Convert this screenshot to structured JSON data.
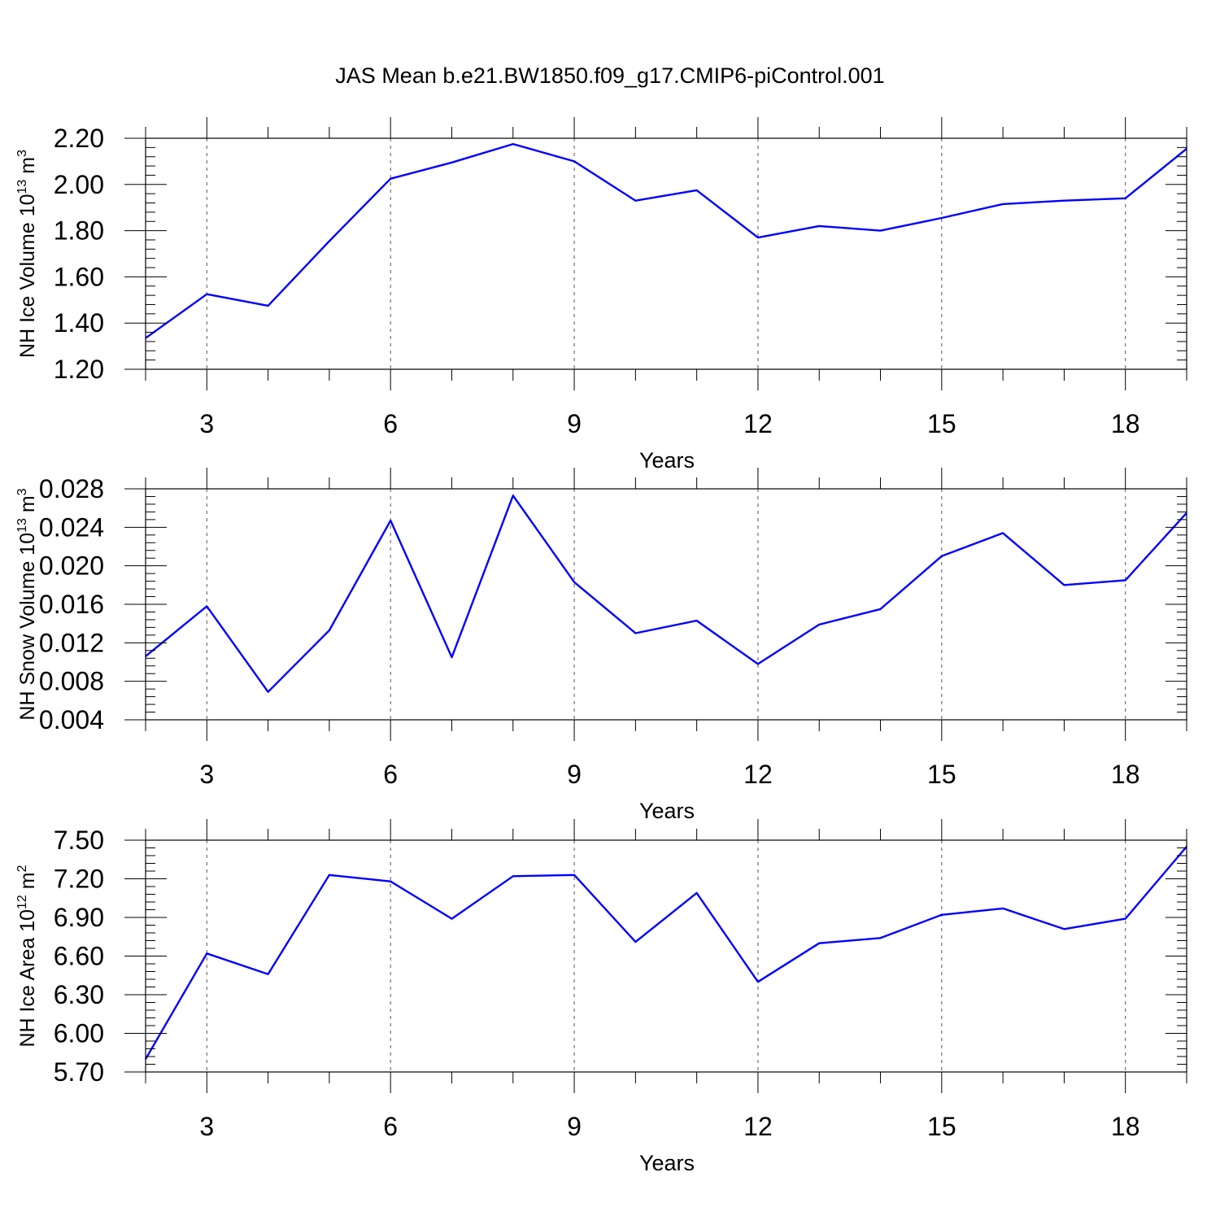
{
  "title": "JAS Mean b.e21.BW1850.f09_g17.CMIP6-piControl.001",
  "line_color": "#0000ff",
  "chart_data": [
    {
      "type": "line",
      "name": "ice-volume",
      "ylabel": "NH Ice Volume 10",
      "ylabel_exp": "13",
      "ylabel_unit": " m",
      "ylabel_unit_exp": "3",
      "xlabel": "Years",
      "xlim": [
        2,
        19
      ],
      "ylim": [
        1.2,
        2.2
      ],
      "xticks": [
        3,
        6,
        9,
        12,
        15,
        18
      ],
      "xtick_labels": [
        "3",
        "6",
        "9",
        "12",
        "15",
        "18"
      ],
      "yticks": [
        1.2,
        1.4,
        1.6,
        1.8,
        2.0,
        2.2
      ],
      "ytick_labels": [
        "1.20",
        "1.40",
        "1.60",
        "1.80",
        "2.00",
        "2.20"
      ],
      "y_minor_step": 0.04,
      "x": [
        2,
        3,
        4,
        5,
        6,
        7,
        8,
        9,
        10,
        11,
        12,
        13,
        14,
        15,
        16,
        17,
        18,
        19
      ],
      "values": [
        1.335,
        1.525,
        1.475,
        1.755,
        2.025,
        2.095,
        2.175,
        2.1,
        1.93,
        1.975,
        1.77,
        1.82,
        1.8,
        1.855,
        1.915,
        1.93,
        1.94,
        2.155
      ]
    },
    {
      "type": "line",
      "name": "snow-volume",
      "ylabel": "NH Snow Volume 10",
      "ylabel_exp": "13",
      "ylabel_unit": " m",
      "ylabel_unit_exp": "3",
      "xlabel": "Years",
      "xlim": [
        2,
        19
      ],
      "ylim": [
        0.004,
        0.028
      ],
      "xticks": [
        3,
        6,
        9,
        12,
        15,
        18
      ],
      "xtick_labels": [
        "3",
        "6",
        "9",
        "12",
        "15",
        "18"
      ],
      "yticks": [
        0.004,
        0.008,
        0.012,
        0.016,
        0.02,
        0.024,
        0.028
      ],
      "ytick_labels": [
        "0.004",
        "0.008",
        "0.012",
        "0.016",
        "0.020",
        "0.024",
        "0.028"
      ],
      "y_minor_step": 0.0008,
      "x": [
        2,
        3,
        4,
        5,
        6,
        7,
        8,
        9,
        10,
        11,
        12,
        13,
        14,
        15,
        16,
        17,
        18,
        19
      ],
      "values": [
        0.0106,
        0.0158,
        0.0069,
        0.0133,
        0.0247,
        0.0105,
        0.0273,
        0.0183,
        0.013,
        0.0143,
        0.0098,
        0.0139,
        0.0155,
        0.021,
        0.0234,
        0.018,
        0.0185,
        0.0255
      ]
    },
    {
      "type": "line",
      "name": "ice-area",
      "ylabel": "NH Ice Area 10",
      "ylabel_exp": "12",
      "ylabel_unit": " m",
      "ylabel_unit_exp": "2",
      "xlabel": "Years",
      "xlim": [
        2,
        19
      ],
      "ylim": [
        5.7,
        7.5
      ],
      "xticks": [
        3,
        6,
        9,
        12,
        15,
        18
      ],
      "xtick_labels": [
        "3",
        "6",
        "9",
        "12",
        "15",
        "18"
      ],
      "yticks": [
        5.7,
        6.0,
        6.3,
        6.6,
        6.9,
        7.2,
        7.5
      ],
      "ytick_labels": [
        "5.70",
        "6.00",
        "6.30",
        "6.60",
        "6.90",
        "7.20",
        "7.50"
      ],
      "y_minor_step": 0.06,
      "x": [
        2,
        3,
        4,
        5,
        6,
        7,
        8,
        9,
        10,
        11,
        12,
        13,
        14,
        15,
        16,
        17,
        18,
        19
      ],
      "values": [
        5.8,
        6.62,
        6.46,
        7.23,
        7.18,
        6.89,
        7.22,
        7.23,
        6.71,
        7.09,
        6.4,
        6.7,
        6.74,
        6.92,
        6.97,
        6.81,
        6.89,
        7.45
      ]
    }
  ]
}
